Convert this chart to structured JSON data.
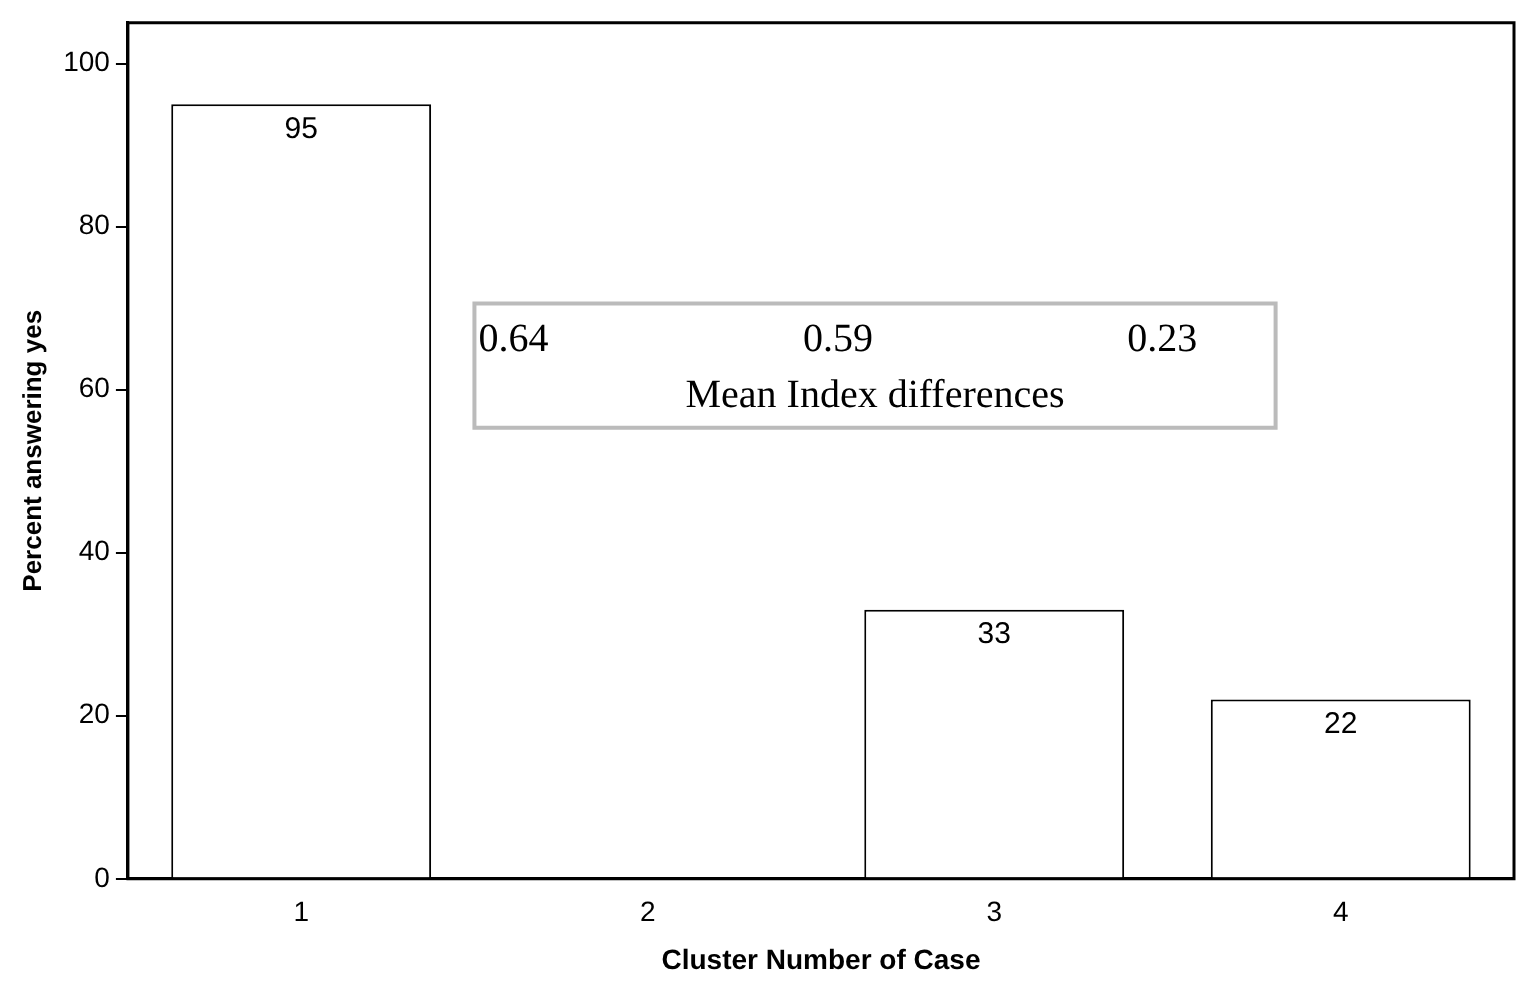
{
  "chart_data": {
    "type": "bar",
    "xlabel": "Cluster Number of Case",
    "ylabel": "Percent answering yes",
    "categories": [
      "1",
      "2",
      "3",
      "4"
    ],
    "values": [
      95,
      null,
      33,
      22
    ],
    "color": "#ffffff",
    "ylim": [
      0,
      105
    ],
    "yticks": [
      0,
      20,
      40,
      60,
      80,
      100
    ],
    "grid": false,
    "legend": false,
    "data_labels": true,
    "annotations": [
      "0.64",
      "0.59",
      "0.23",
      "Mean Index differences"
    ]
  }
}
